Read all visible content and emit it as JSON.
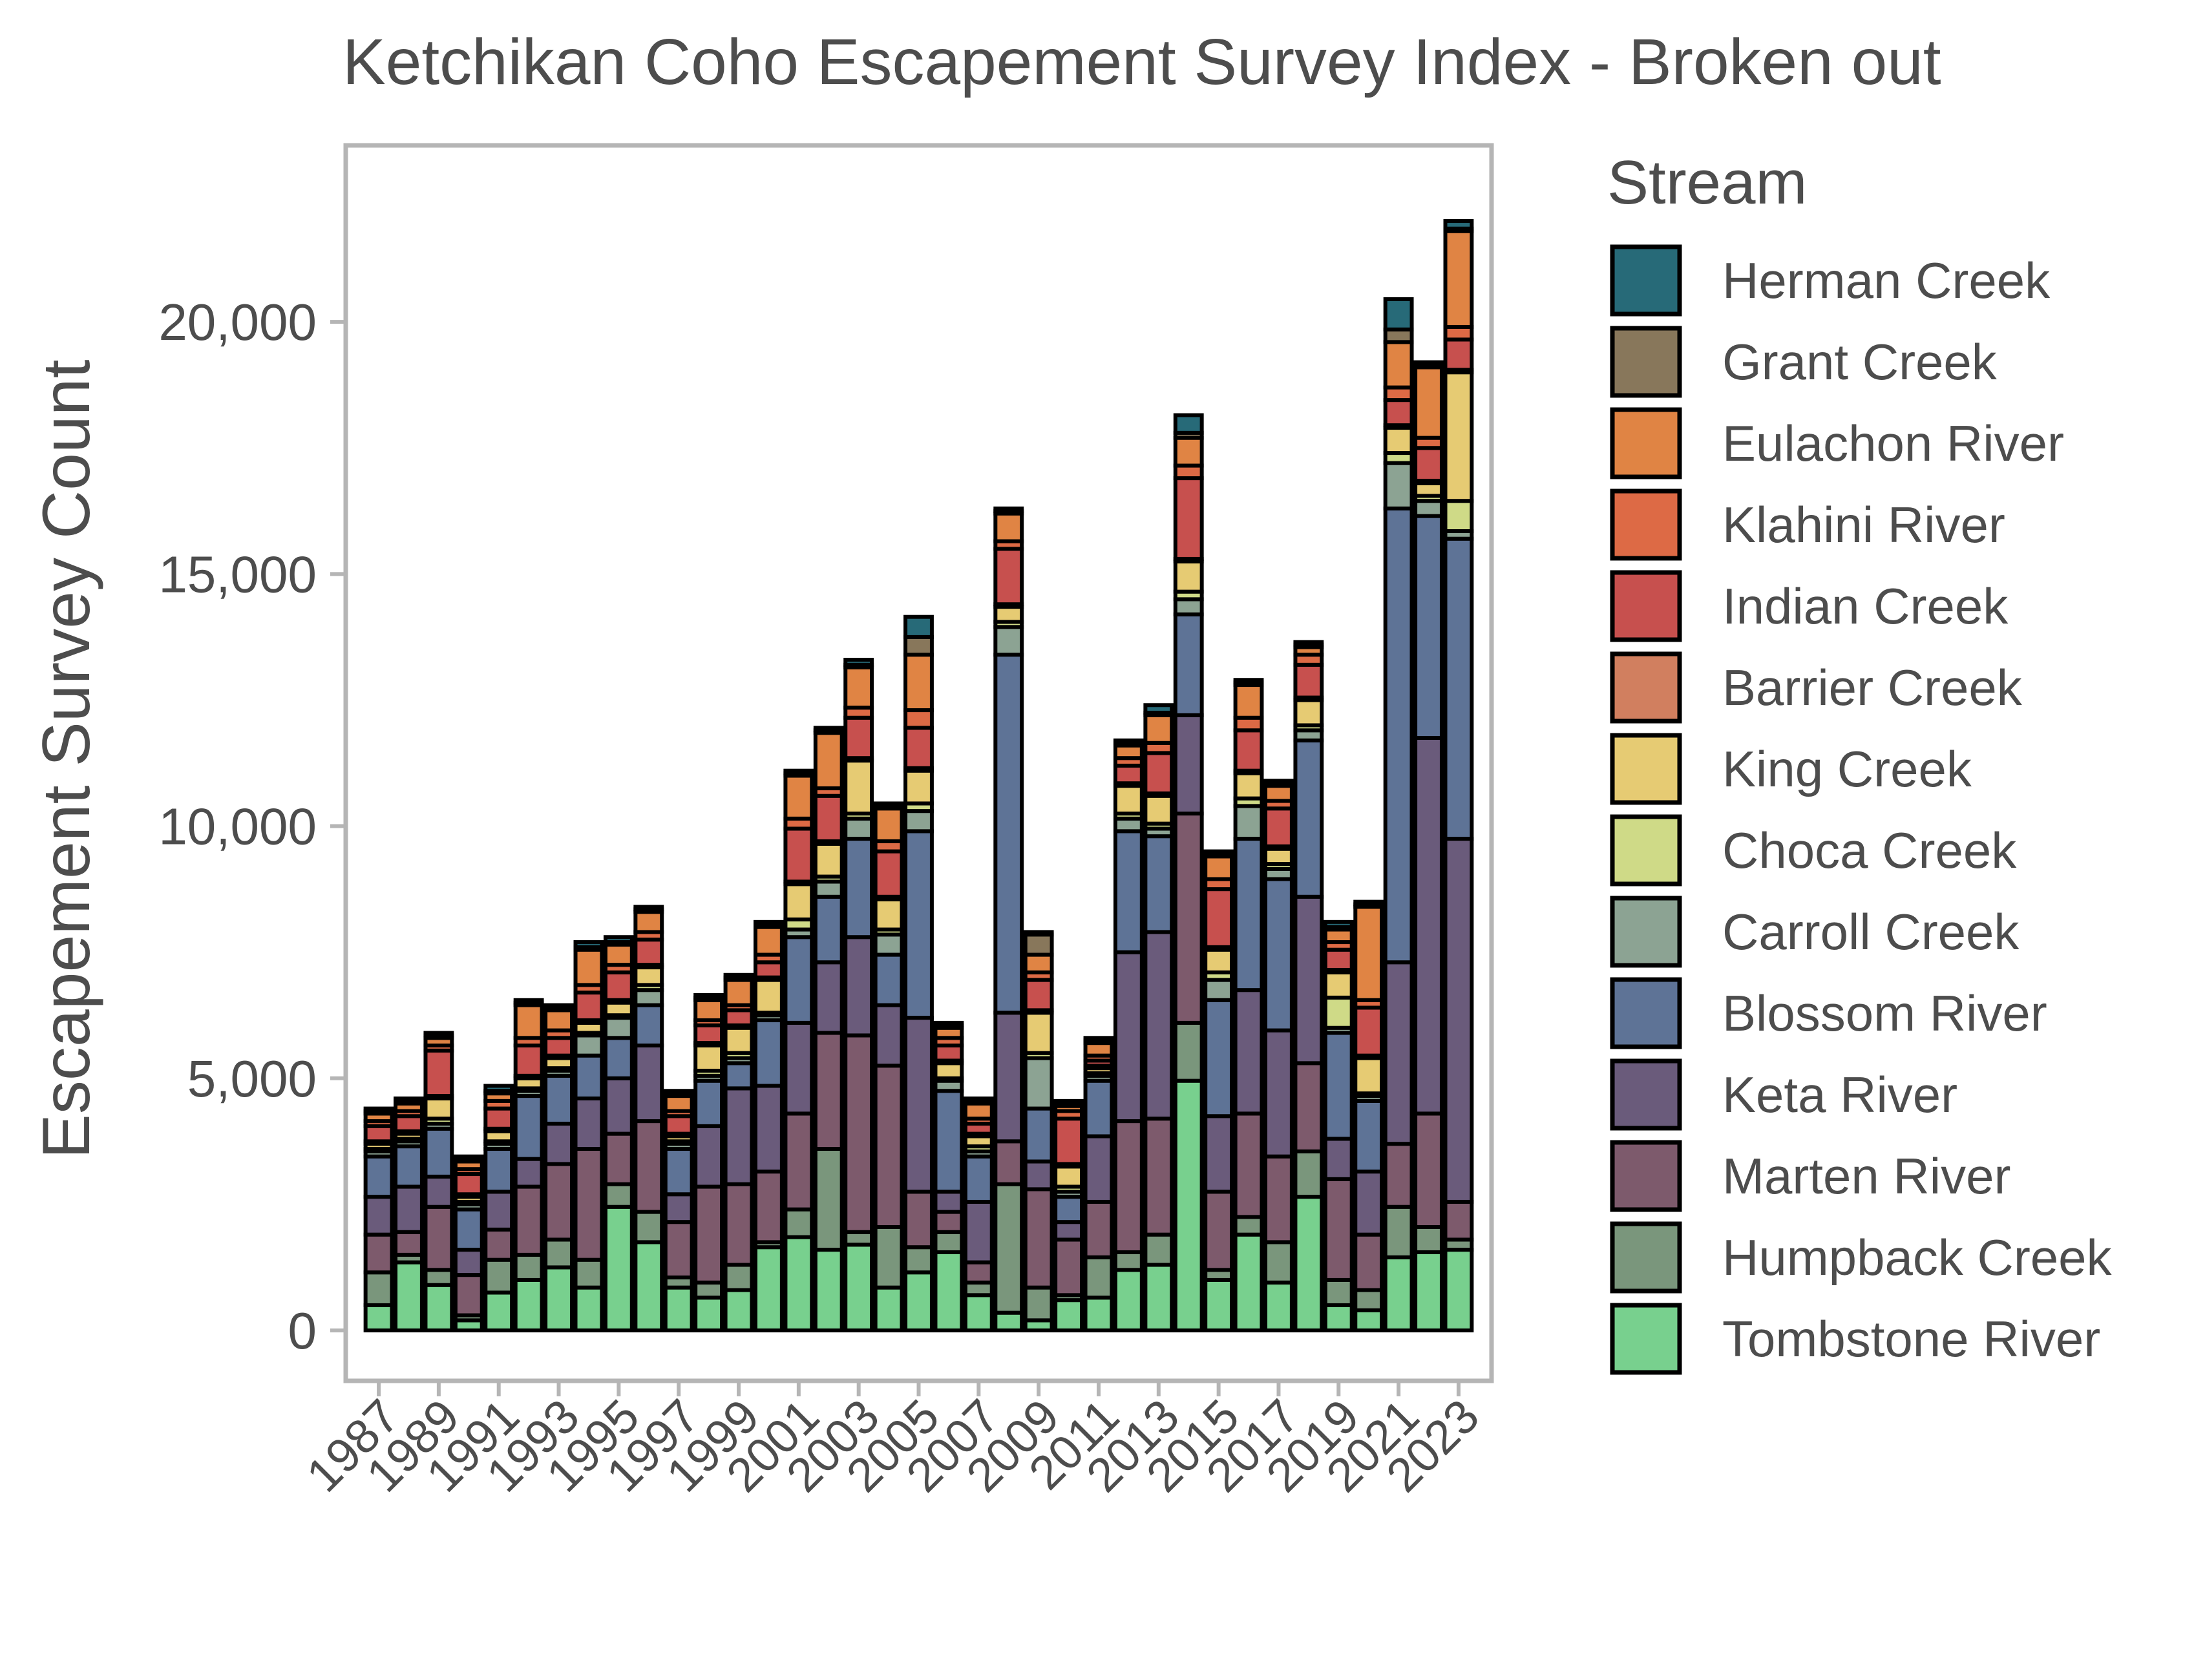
{
  "chart_data": {
    "type": "bar",
    "stacked": true,
    "title": "Ketchikan Coho Escapement Survey Index - Broken out",
    "xlabel": "",
    "ylabel": "Escapement Survey Count",
    "ylim": [
      -1000,
      23500
    ],
    "yticks": [
      0,
      5000,
      10000,
      15000,
      20000
    ],
    "ytick_labels": [
      "0",
      "5,000",
      "10,000",
      "15,000",
      "20,000"
    ],
    "xlim": [
      1985.9,
      2024.1
    ],
    "xticks": [
      1987,
      1989,
      1991,
      1993,
      1995,
      1997,
      1999,
      2001,
      2003,
      2005,
      2007,
      2009,
      2011,
      2013,
      2015,
      2017,
      2019,
      2021,
      2023
    ],
    "xtick_labels": [
      "1987",
      "1989",
      "1991",
      "1993",
      "1995",
      "1997",
      "1999",
      "2001",
      "2003",
      "2005",
      "2007",
      "2009",
      "2011",
      "2013",
      "2015",
      "2017",
      "2019",
      "2021",
      "2023"
    ],
    "grid": false,
    "legend_title": "Stream",
    "legend_position": "right",
    "categories": [
      1987,
      1988,
      1989,
      1990,
      1991,
      1992,
      1993,
      1994,
      1995,
      1996,
      1997,
      1998,
      1999,
      2000,
      2001,
      2002,
      2003,
      2004,
      2005,
      2006,
      2007,
      2008,
      2009,
      2010,
      2011,
      2012,
      2013,
      2014,
      2015,
      2016,
      2017,
      2018,
      2019,
      2020,
      2021,
      2022,
      2023
    ],
    "series": [
      {
        "name": "Tombstone River",
        "color": "#78D08E",
        "values": [
          500,
          1350,
          900,
          200,
          750,
          1000,
          1250,
          850,
          2450,
          1750,
          850,
          650,
          800,
          1650,
          1850,
          1600,
          1700,
          850,
          1150,
          1550,
          700,
          350,
          200,
          600,
          650,
          1200,
          1300,
          4950,
          1000,
          1900,
          950,
          2650,
          500,
          400,
          1450,
          1550,
          1600
        ]
      },
      {
        "name": "Humpback Creek",
        "color": "#7A967C",
        "values": [
          650,
          150,
          300,
          100,
          650,
          500,
          550,
          550,
          450,
          600,
          200,
          300,
          500,
          100,
          550,
          2000,
          250,
          1200,
          500,
          400,
          250,
          2550,
          650,
          100,
          800,
          350,
          600,
          1150,
          200,
          350,
          800,
          900,
          500,
          400,
          1000,
          500,
          200
        ]
      },
      {
        "name": "Marten River",
        "color": "#7D5A6C",
        "values": [
          750,
          450,
          1250,
          800,
          600,
          1350,
          1500,
          2200,
          1000,
          1800,
          1100,
          1900,
          1600,
          1400,
          1900,
          2300,
          3900,
          3200,
          1100,
          400,
          400,
          850,
          1950,
          1100,
          1100,
          2600,
          2300,
          4150,
          1550,
          2050,
          1700,
          1750,
          2000,
          1100,
          1250,
          2250,
          750
        ]
      },
      {
        "name": "Keta River",
        "color": "#6A5B7B",
        "values": [
          750,
          900,
          600,
          500,
          750,
          550,
          800,
          1000,
          1100,
          1500,
          550,
          1200,
          1900,
          1700,
          1800,
          1400,
          1950,
          1200,
          3450,
          400,
          1200,
          2550,
          550,
          350,
          1300,
          3350,
          3700,
          1950,
          1500,
          2450,
          2500,
          3300,
          800,
          1250,
          3600,
          7450,
          7200
        ]
      },
      {
        "name": "Blossom River",
        "color": "#5E7396",
        "values": [
          800,
          800,
          950,
          800,
          850,
          1250,
          950,
          850,
          800,
          800,
          900,
          900,
          500,
          1300,
          1700,
          1300,
          1950,
          1000,
          3700,
          2000,
          900,
          7100,
          1050,
          500,
          1100,
          2400,
          1900,
          2000,
          2300,
          3000,
          3000,
          3100,
          2100,
          1400,
          9000,
          4400,
          5950
        ]
      },
      {
        "name": "Carroll Creek",
        "color": "#8CA393",
        "values": [
          100,
          100,
          100,
          100,
          100,
          100,
          100,
          400,
          400,
          300,
          100,
          100,
          100,
          100,
          150,
          300,
          400,
          400,
          400,
          200,
          100,
          550,
          1000,
          100,
          100,
          250,
          150,
          300,
          400,
          650,
          200,
          200,
          100,
          100,
          900,
          300,
          150
        ]
      },
      {
        "name": "Choca Creek",
        "color": "#CFDA87",
        "values": [
          50,
          50,
          100,
          50,
          50,
          50,
          50,
          50,
          50,
          100,
          50,
          100,
          100,
          50,
          200,
          100,
          100,
          100,
          150,
          50,
          100,
          100,
          100,
          100,
          50,
          100,
          100,
          150,
          150,
          150,
          100,
          100,
          600,
          50,
          200,
          100,
          600
        ]
      },
      {
        "name": "King Creek",
        "color": "#E6CB73",
        "values": [
          100,
          100,
          400,
          100,
          200,
          200,
          200,
          200,
          250,
          350,
          100,
          500,
          500,
          650,
          700,
          650,
          1050,
          600,
          650,
          300,
          200,
          300,
          800,
          400,
          100,
          550,
          550,
          600,
          450,
          500,
          300,
          500,
          500,
          700,
          500,
          250,
          2550
        ]
      },
      {
        "name": "Barrier Creek",
        "color": "#D17F5F",
        "values": [
          50,
          50,
          50,
          50,
          50,
          50,
          50,
          50,
          50,
          50,
          50,
          50,
          50,
          50,
          50,
          50,
          50,
          50,
          50,
          50,
          50,
          50,
          50,
          50,
          50,
          50,
          50,
          50,
          50,
          50,
          50,
          50,
          50,
          50,
          50,
          50,
          50
        ]
      },
      {
        "name": "Indian Creek",
        "color": "#C7504E",
        "values": [
          300,
          300,
          900,
          400,
          400,
          600,
          350,
          550,
          550,
          500,
          350,
          350,
          300,
          300,
          1050,
          900,
          800,
          900,
          800,
          300,
          200,
          1100,
          600,
          900,
          100,
          350,
          800,
          1600,
          1150,
          800,
          750,
          650,
          400,
          950,
          500,
          650,
          600
        ]
      },
      {
        "name": "Klahini River",
        "color": "#DD6A45",
        "values": [
          100,
          100,
          100,
          100,
          150,
          150,
          150,
          150,
          150,
          150,
          100,
          100,
          100,
          150,
          200,
          150,
          200,
          200,
          350,
          150,
          100,
          150,
          150,
          150,
          100,
          150,
          200,
          250,
          200,
          250,
          150,
          200,
          150,
          150,
          250,
          200,
          250
        ]
      },
      {
        "name": "Eulachon River",
        "color": "#E08444",
        "values": [
          150,
          150,
          150,
          150,
          150,
          650,
          400,
          700,
          400,
          400,
          300,
          400,
          500,
          550,
          850,
          1100,
          800,
          650,
          1100,
          200,
          300,
          550,
          350,
          100,
          250,
          250,
          550,
          550,
          450,
          650,
          300,
          150,
          250,
          1850,
          900,
          1400,
          1900
        ]
      },
      {
        "name": "Grant Creek",
        "color": "#88775B",
        "values": [
          50,
          50,
          50,
          50,
          50,
          50,
          50,
          50,
          50,
          50,
          50,
          50,
          50,
          50,
          50,
          50,
          50,
          50,
          350,
          50,
          50,
          50,
          400,
          50,
          50,
          50,
          50,
          100,
          50,
          50,
          50,
          50,
          50,
          50,
          250,
          50,
          50
        ]
      },
      {
        "name": "Herman Creek",
        "color": "#276A78",
        "values": [
          50,
          50,
          50,
          50,
          100,
          50,
          50,
          100,
          100,
          50,
          50,
          50,
          50,
          50,
          50,
          50,
          100,
          50,
          400,
          50,
          50,
          50,
          50,
          50,
          50,
          50,
          150,
          350,
          50,
          50,
          50,
          50,
          100,
          50,
          600,
          50,
          150
        ]
      }
    ]
  }
}
